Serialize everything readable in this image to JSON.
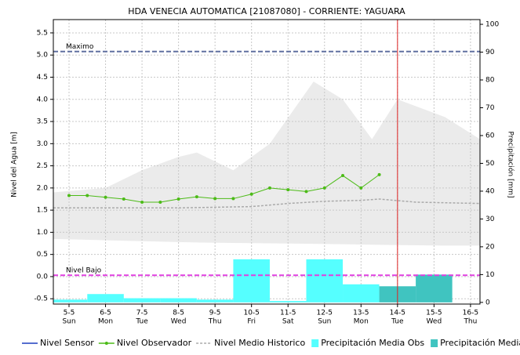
{
  "chart_data": {
    "type": "combo",
    "title": "HDA VENECIA AUTOMATICA [21087080] - CORRIENTE: YAGUARA",
    "y_label": "Nivel del Agua [m]",
    "y2_label": "Precipitación [mm]",
    "xlim": [
      4.57,
      16.26
    ],
    "xticks": [
      {
        "value": 5,
        "label": "5-5"
      },
      {
        "value": 6,
        "label": "6-5"
      },
      {
        "value": 7,
        "label": "7-5"
      },
      {
        "value": 8,
        "label": "8-5"
      },
      {
        "value": 9,
        "label": "9-5"
      },
      {
        "value": 10,
        "label": "10-5"
      },
      {
        "value": 11,
        "label": "11-5"
      },
      {
        "value": 12,
        "label": "12-5"
      },
      {
        "value": 13,
        "label": "13-5"
      },
      {
        "value": 14,
        "label": "14-5"
      },
      {
        "value": 15,
        "label": "15-5"
      },
      {
        "value": 16,
        "label": "16-5"
      }
    ],
    "xtick_days": [
      "Sun",
      "Mon",
      "Tue",
      "Wed",
      "Thu",
      "Fri",
      "Sat",
      "Sun",
      "Mon",
      "Tue",
      "Wed",
      "Thu"
    ],
    "ylim": [
      -0.62,
      5.8
    ],
    "yticks": [
      -0.5,
      {
        "value": 0,
        "label": "0.0"
      },
      0.5,
      {
        "value": 1,
        "label": "1.0"
      },
      1.5,
      {
        "value": 2,
        "label": "2.0"
      },
      2.5,
      {
        "value": 3,
        "label": "3.0"
      },
      3.5,
      {
        "value": 4,
        "label": "4.0"
      },
      4.5,
      {
        "value": 5,
        "label": "5.0"
      },
      5.5
    ],
    "y2lim": [
      -0.6,
      101.7
    ],
    "y2ticks": [
      0,
      10,
      20,
      30,
      40,
      50,
      60,
      70,
      80,
      90,
      100
    ],
    "grid": true,
    "band": {
      "color": "#ebebeb",
      "x": [
        4.57,
        6,
        7,
        8,
        8.5,
        9.5,
        10.5,
        11.7,
        12.5,
        13.3,
        14,
        15.3,
        16.26
      ],
      "upper": [
        1.9,
        2.0,
        2.4,
        2.7,
        2.8,
        2.4,
        3.0,
        4.4,
        4.0,
        3.1,
        4.0,
        3.6,
        3.1
      ],
      "lower": [
        0.85,
        0.82,
        0.8,
        0.78,
        0.77,
        0.76,
        0.75,
        0.74,
        0.73,
        0.72,
        0.71,
        0.7,
        0.7
      ]
    },
    "series": [
      {
        "name": "Nivel Sensor",
        "color": "#1f3fbf",
        "style": "line",
        "x": [],
        "values": []
      },
      {
        "name": "Nivel Observador",
        "color": "#4cbb17",
        "style": "markers",
        "x": [
          5,
          5.5,
          6,
          6.5,
          7,
          7.5,
          8,
          8.5,
          9,
          9.5,
          10,
          10.5,
          11,
          11.5,
          12,
          12.5,
          13,
          13.5
        ],
        "values": [
          1.83,
          1.83,
          1.79,
          1.75,
          1.68,
          1.68,
          1.75,
          1.8,
          1.76,
          1.76,
          1.86,
          2.0,
          1.96,
          1.92,
          2.0,
          2.28,
          2.0,
          2.3
        ]
      },
      {
        "name": "Nivel Medio Historico",
        "color": "#aaaaaa",
        "style": "dashed",
        "x": [
          4.57,
          6,
          8,
          10,
          11,
          12,
          13,
          13.5,
          14.5,
          16.26
        ],
        "values": [
          1.55,
          1.55,
          1.55,
          1.58,
          1.65,
          1.7,
          1.72,
          1.75,
          1.68,
          1.65
        ]
      },
      {
        "name": "Precipitación Media Obs",
        "color": "#55ffff",
        "style": "bar",
        "axis": "y2",
        "x": [
          5,
          6,
          7,
          8,
          9,
          10,
          11,
          12,
          13
        ],
        "values": [
          1,
          3,
          1.5,
          1.5,
          1,
          15.5,
          0.5,
          15.5,
          6.5
        ]
      },
      {
        "name": "Precipitación Media Pro",
        "color": "#40c4c0",
        "style": "bar",
        "axis": "y2",
        "x": [
          14,
          15
        ],
        "values": [
          5.8,
          10
        ]
      }
    ],
    "ref_lines": [
      {
        "label": "Maximo",
        "value": 5.08,
        "color": "#6070a0"
      },
      {
        "label": "Nivel Bajo",
        "value": 0.03,
        "color": "#e040e0"
      }
    ],
    "vline": {
      "value": 14,
      "color": "#dd2222"
    }
  }
}
